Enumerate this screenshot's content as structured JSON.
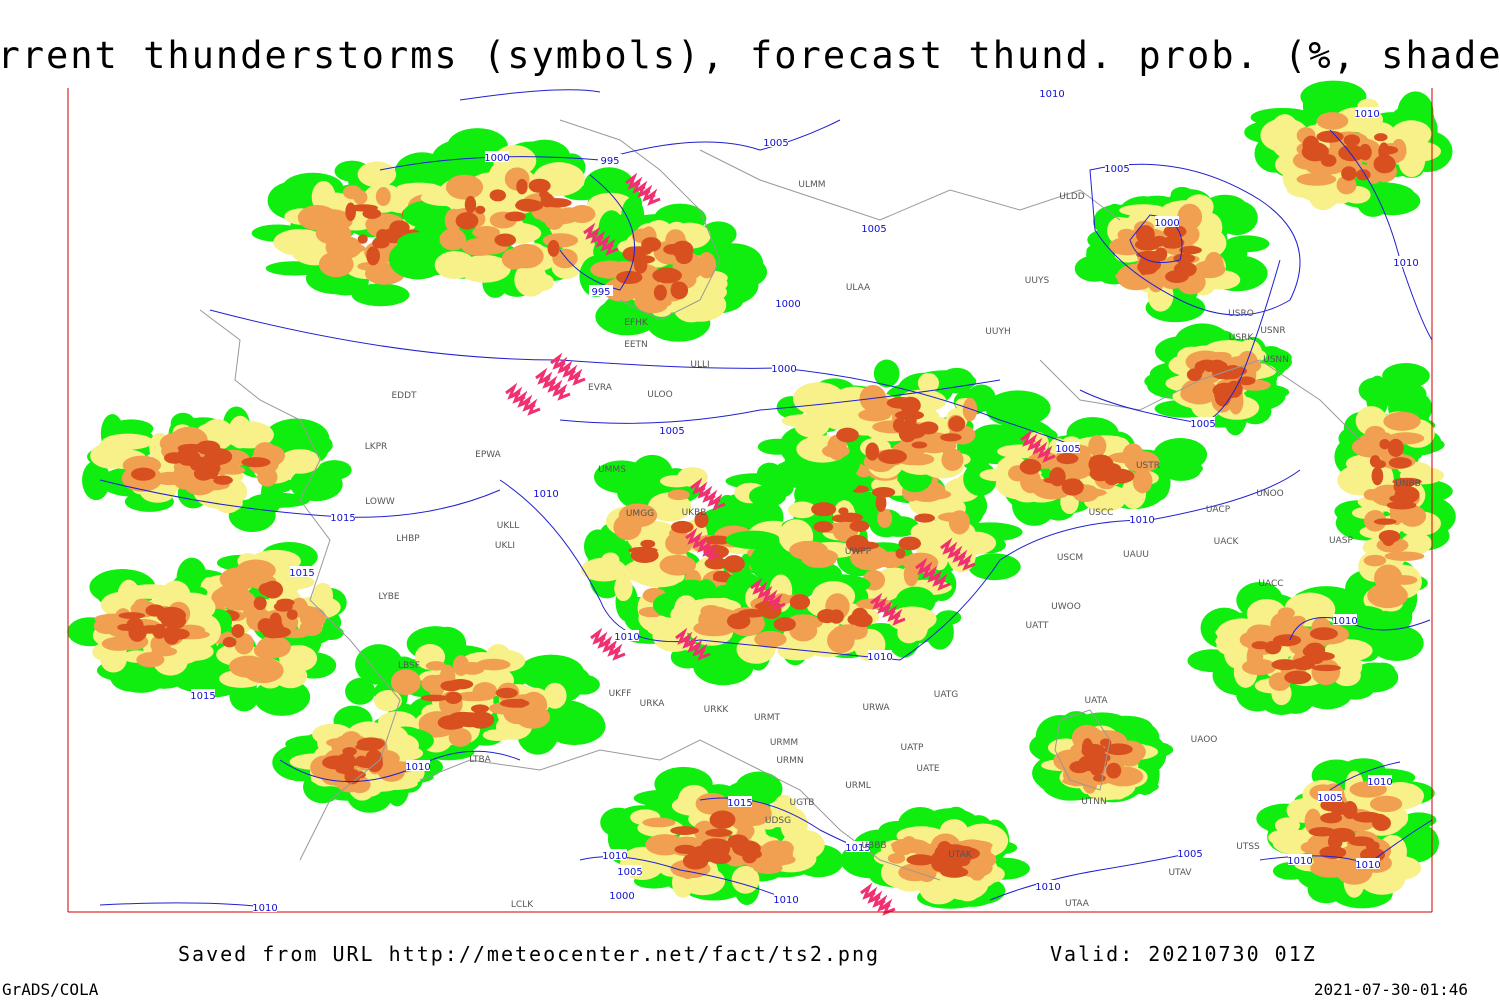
{
  "header": {
    "title": "Current thunderstorms (symbols), forecast thund. prob. (%, shaded)"
  },
  "footer": {
    "source": "Saved from URL http://meteocenter.net/fact/ts2.png",
    "valid": "Valid: 20210730 01Z",
    "software": "GrADS/COLA",
    "timestamp": "2021-07-30-01:46"
  },
  "isobar_labels": [
    "1010",
    "1000",
    "995",
    "1005",
    "1005",
    "995",
    "1000",
    "1000",
    "1005",
    "1010",
    "1015",
    "1015",
    "1015",
    "1010",
    "1010",
    "1005",
    "1005",
    "1010",
    "1005",
    "1000",
    "1010",
    "1010",
    "1010",
    "1010",
    "1015",
    "1010",
    "1005",
    "1000",
    "1010",
    "1010",
    "1015",
    "1010",
    "1005",
    "1010",
    "1010",
    "1010",
    "1005"
  ],
  "station_labels": [
    "ULMM",
    "ULDD",
    "ULAA",
    "UUYS",
    "UUYH",
    "USRO",
    "USRK",
    "USNR",
    "USNN",
    "EFHK",
    "EETN",
    "ULLI",
    "EVRA",
    "ULOO",
    "UMMS",
    "UMGG",
    "UKBB",
    "UKLL",
    "UKLI",
    "LHBP",
    "LOWW",
    "EPWA",
    "LKPR",
    "EDDT",
    "LYBE",
    "LBSF",
    "UKFF",
    "URKA",
    "URKK",
    "URMT",
    "URMM",
    "URMN",
    "UBBB",
    "UTAK",
    "UGTB",
    "UDSG",
    "UATG",
    "URWA",
    "UATT",
    "UWOO",
    "USCM",
    "UAUU",
    "UACK",
    "UACP",
    "USCC",
    "UNOO",
    "UASP",
    "UACC",
    "UATA",
    "UAOO",
    "UATE",
    "UATP",
    "URML",
    "UTNN",
    "UTSS",
    "UTAV",
    "UTAA",
    "LCLK",
    "LTBA",
    "UWPP",
    "USTR",
    "UNBB"
  ]
}
